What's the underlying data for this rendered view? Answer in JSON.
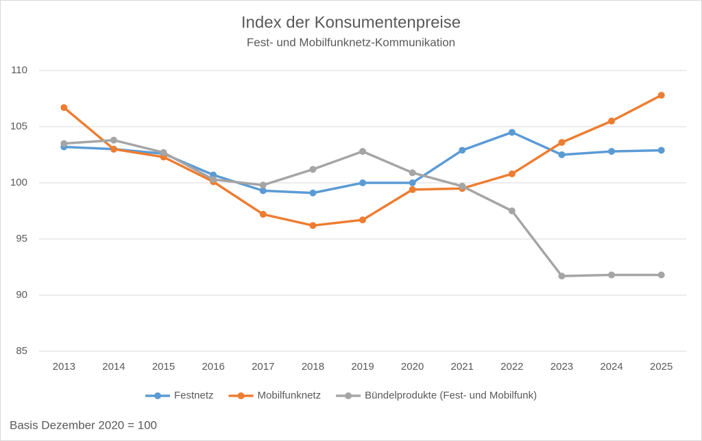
{
  "chart_data": {
    "type": "line",
    "title": "Index der Konsumentenpreise",
    "subtitle": "Fest- und Mobilfunknetz-Kommunikation",
    "categories": [
      "2013",
      "2014",
      "2015",
      "2016",
      "2017",
      "2018",
      "2019",
      "2020",
      "2021",
      "2022",
      "2023",
      "2024",
      "2025"
    ],
    "series": [
      {
        "name": "Festnetz",
        "color": "#5b9bd5",
        "values": [
          103.2,
          103.0,
          102.6,
          100.7,
          99.3,
          99.1,
          100.0,
          100.0,
          102.9,
          104.5,
          102.5,
          102.8,
          102.9
        ]
      },
      {
        "name": "Mobilfunknetz",
        "color": "#ed7d31",
        "values": [
          106.7,
          103.0,
          102.3,
          100.1,
          97.2,
          96.2,
          96.7,
          99.4,
          99.5,
          100.8,
          103.6,
          105.5,
          107.8
        ]
      },
      {
        "name": "Bündelprodukte (Fest- und Mobilfunk)",
        "color": "#a5a5a5",
        "values": [
          103.5,
          103.8,
          102.7,
          100.3,
          99.8,
          101.2,
          102.8,
          100.9,
          99.7,
          97.5,
          91.7,
          91.8,
          91.8
        ]
      }
    ],
    "ylim": [
      85,
      110
    ],
    "yticks": [
      85,
      90,
      95,
      100,
      105,
      110
    ],
    "grid": true,
    "legend": "bottom",
    "annotation": "Basis Dezember 2020 = 100"
  }
}
